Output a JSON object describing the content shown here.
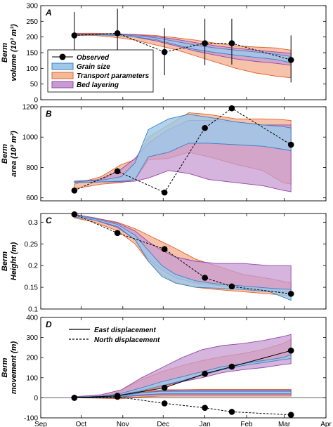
{
  "x_axis": {
    "ticks": [
      "Sep",
      "Oct",
      "Nov",
      "Dec",
      "Jan",
      "Feb",
      "Mar",
      "Apr"
    ],
    "tick_days": [
      0,
      30,
      61,
      91,
      122,
      153,
      181,
      212
    ],
    "range_days": [
      0,
      212
    ]
  },
  "colors": {
    "observed": "#000000",
    "grain_fill": "#9cc9e8",
    "grain_line": "#3d7fc1",
    "transport_fill": "#f4b99b",
    "transport_line": "#e0622a",
    "bed_fill": "#c79bd1",
    "bed_line": "#9447a8"
  },
  "legend_volume": {
    "observed": "Observed",
    "grain": "Grain size",
    "transport": "Transport parameters",
    "bed": "Bed layering"
  },
  "legend_movement": {
    "east": "East displacement",
    "north": "North displacement"
  },
  "chart_data": [
    {
      "type": "line",
      "panel": "A",
      "ylabel_lines": [
        "Berm",
        "volume (10³ m³)"
      ],
      "ylim": [
        0,
        300
      ],
      "yticks": [
        0,
        50,
        100,
        150,
        200,
        250,
        300
      ],
      "legend_placement": "bottom-left",
      "observed": {
        "x_days": [
          25,
          57,
          92,
          122,
          142,
          186
        ],
        "y": [
          205,
          212,
          152,
          180,
          180,
          127
        ],
        "err": [
          [
            130,
            280
          ],
          [
            135,
            290
          ],
          [
            78,
            228
          ],
          [
            110,
            258
          ],
          [
            112,
            258
          ],
          [
            55,
            205
          ]
        ]
      },
      "bands": {
        "transport": {
          "x_days": [
            25,
            40,
            57,
            70,
            85,
            100,
            115,
            130,
            145,
            160,
            175,
            186
          ],
          "lo": [
            205,
            205,
            198,
            190,
            175,
            160,
            140,
            120,
            100,
            85,
            75,
            70
          ],
          "hi": [
            212,
            212,
            210,
            208,
            205,
            198,
            190,
            180,
            172,
            168,
            165,
            158
          ]
        },
        "bed": {
          "x_days": [
            25,
            40,
            57,
            70,
            85,
            100,
            115,
            130,
            145,
            160,
            175,
            186
          ],
          "lo": [
            207,
            207,
            205,
            200,
            188,
            172,
            155,
            142,
            130,
            122,
            116,
            110
          ],
          "hi": [
            210,
            210,
            209,
            207,
            202,
            193,
            182,
            172,
            164,
            158,
            152,
            148
          ]
        },
        "grain": {
          "x_days": [
            25,
            40,
            57,
            70,
            85,
            100,
            115,
            130,
            145,
            160,
            175,
            186
          ],
          "lo": [
            207,
            207,
            205,
            200,
            192,
            176,
            160,
            150,
            142,
            135,
            128,
            118
          ],
          "hi": [
            209,
            209,
            208,
            204,
            198,
            186,
            174,
            165,
            158,
            152,
            145,
            138
          ]
        }
      }
    },
    {
      "type": "line",
      "panel": "B",
      "ylabel_lines": [
        "Berm",
        "area (10³ m²)"
      ],
      "ylim": [
        580,
        1200
      ],
      "yticks": [
        600,
        800,
        1000,
        1200
      ],
      "observed": {
        "x_days": [
          25,
          57,
          92,
          122,
          142,
          186
        ],
        "y": [
          648,
          775,
          635,
          1060,
          1190,
          950
        ]
      },
      "bands": {
        "transport": {
          "x_days": [
            25,
            45,
            60,
            70,
            80,
            95,
            110,
            125,
            145,
            165,
            180,
            186
          ],
          "lo": [
            660,
            690,
            700,
            720,
            850,
            860,
            900,
            870,
            820,
            780,
            700,
            690
          ],
          "hi": [
            690,
            740,
            820,
            850,
            1000,
            1080,
            1160,
            1150,
            1120,
            1120,
            1115,
            1110
          ]
        },
        "bed": {
          "x_days": [
            25,
            45,
            60,
            70,
            80,
            95,
            110,
            125,
            145,
            165,
            180,
            186
          ],
          "lo": [
            700,
            705,
            705,
            710,
            730,
            780,
            760,
            720,
            700,
            680,
            650,
            640
          ],
          "hi": [
            710,
            720,
            790,
            860,
            960,
            1050,
            1110,
            1110,
            1100,
            1080,
            1080,
            1080
          ]
        },
        "grain": {
          "x_days": [
            25,
            45,
            60,
            70,
            80,
            95,
            110,
            125,
            145,
            165,
            180,
            186
          ],
          "lo": [
            700,
            705,
            710,
            720,
            870,
            900,
            960,
            960,
            950,
            940,
            920,
            910
          ],
          "hi": [
            705,
            715,
            740,
            830,
            1050,
            1120,
            1150,
            1130,
            1100,
            1080,
            1070,
            1060
          ]
        }
      }
    },
    {
      "type": "line",
      "panel": "C",
      "ylabel_lines": [
        "Berm",
        "Height (m)"
      ],
      "ylim": [
        0.1,
        0.32
      ],
      "yticks": [
        0.1,
        0.15,
        0.2,
        0.25,
        0.3
      ],
      "observed": {
        "x_days": [
          25,
          57,
          92,
          122,
          142,
          186
        ],
        "y": [
          0.318,
          0.275,
          0.238,
          0.172,
          0.152,
          0.135
        ]
      },
      "bands": {
        "transport": {
          "x_days": [
            25,
            40,
            57,
            70,
            80,
            90,
            100,
            115,
            130,
            150,
            170,
            186
          ],
          "lo": [
            0.31,
            0.3,
            0.28,
            0.25,
            0.21,
            0.18,
            0.16,
            0.15,
            0.145,
            0.14,
            0.135,
            0.13
          ],
          "hi": [
            0.318,
            0.31,
            0.3,
            0.285,
            0.27,
            0.255,
            0.24,
            0.215,
            0.2,
            0.18,
            0.17,
            0.16
          ]
        },
        "bed": {
          "x_days": [
            25,
            40,
            57,
            70,
            80,
            90,
            100,
            115,
            130,
            150,
            170,
            186
          ],
          "lo": [
            0.312,
            0.305,
            0.288,
            0.26,
            0.215,
            0.19,
            0.172,
            0.16,
            0.155,
            0.148,
            0.142,
            0.138
          ],
          "hi": [
            0.318,
            0.31,
            0.298,
            0.28,
            0.255,
            0.235,
            0.22,
            0.21,
            0.205,
            0.205,
            0.2,
            0.2
          ]
        },
        "grain": {
          "x_days": [
            25,
            40,
            57,
            70,
            80,
            90,
            100,
            115,
            130,
            150,
            170,
            186
          ],
          "lo": [
            0.312,
            0.305,
            0.29,
            0.26,
            0.21,
            0.175,
            0.16,
            0.15,
            0.148,
            0.145,
            0.14,
            0.12
          ],
          "hi": [
            0.316,
            0.308,
            0.295,
            0.27,
            0.235,
            0.2,
            0.18,
            0.165,
            0.158,
            0.153,
            0.148,
            0.145
          ]
        }
      }
    },
    {
      "type": "line",
      "panel": "D",
      "ylabel_lines": [
        "Berm",
        "movement (m)"
      ],
      "ylim": [
        -100,
        400
      ],
      "yticks": [
        -100,
        0,
        100,
        200,
        300,
        400
      ],
      "legend_placement": "top-left",
      "observed_east": {
        "x_days": [
          25,
          57,
          92,
          122,
          142,
          186
        ],
        "y": [
          0,
          10,
          50,
          120,
          155,
          235
        ]
      },
      "observed_north": {
        "x_days": [
          25,
          57,
          92,
          122,
          142,
          186
        ],
        "y": [
          0,
          5,
          -28,
          -50,
          -70,
          -85
        ]
      },
      "bands": {
        "transport": {
          "x_days": [
            25,
            45,
            60,
            75,
            90,
            105,
            120,
            135,
            150,
            165,
            180,
            186
          ],
          "lo": [
            0,
            2,
            10,
            30,
            55,
            80,
            110,
            140,
            165,
            180,
            195,
            200
          ],
          "hi": [
            5,
            15,
            40,
            90,
            130,
            160,
            185,
            205,
            220,
            240,
            270,
            290
          ]
        },
        "bed": {
          "x_days": [
            25,
            45,
            60,
            75,
            90,
            105,
            120,
            135,
            150,
            165,
            180,
            186
          ],
          "lo": [
            0,
            3,
            15,
            40,
            60,
            80,
            100,
            125,
            140,
            150,
            165,
            170
          ],
          "hi": [
            5,
            15,
            40,
            100,
            150,
            200,
            240,
            260,
            270,
            285,
            305,
            315
          ]
        },
        "grain": {
          "x_days": [
            25,
            45,
            60,
            75,
            90,
            105,
            120,
            135,
            150,
            165,
            180,
            186
          ],
          "lo": [
            0,
            3,
            15,
            35,
            60,
            85,
            115,
            140,
            160,
            175,
            190,
            195
          ],
          "hi": [
            3,
            8,
            22,
            50,
            80,
            105,
            130,
            155,
            170,
            185,
            200,
            215
          ]
        },
        "transport_north": {
          "x_days": [
            25,
            45,
            60,
            75,
            90,
            105,
            120,
            135,
            150,
            165,
            180,
            186
          ],
          "lo": [
            0,
            -2,
            -5,
            5,
            8,
            8,
            8,
            8,
            8,
            8,
            8,
            8
          ],
          "hi": [
            2,
            5,
            15,
            28,
            40,
            40,
            42,
            42,
            42,
            42,
            42,
            42
          ]
        },
        "bed_north": {
          "x_days": [
            25,
            45,
            60,
            75,
            90,
            105,
            120,
            135,
            150,
            165,
            180,
            186
          ],
          "lo": [
            0,
            0,
            5,
            12,
            15,
            15,
            15,
            15,
            15,
            15,
            15,
            15
          ],
          "hi": [
            2,
            4,
            12,
            25,
            35,
            38,
            38,
            38,
            38,
            38,
            38,
            38
          ]
        },
        "grain_north": {
          "x_days": [
            25,
            45,
            60,
            75,
            90,
            105,
            120,
            135,
            150,
            165,
            180,
            186
          ],
          "lo": [
            0,
            0,
            5,
            15,
            20,
            20,
            20,
            20,
            20,
            20,
            20,
            20
          ],
          "hi": [
            1,
            3,
            10,
            25,
            32,
            32,
            32,
            32,
            32,
            32,
            32,
            32
          ]
        }
      }
    }
  ]
}
